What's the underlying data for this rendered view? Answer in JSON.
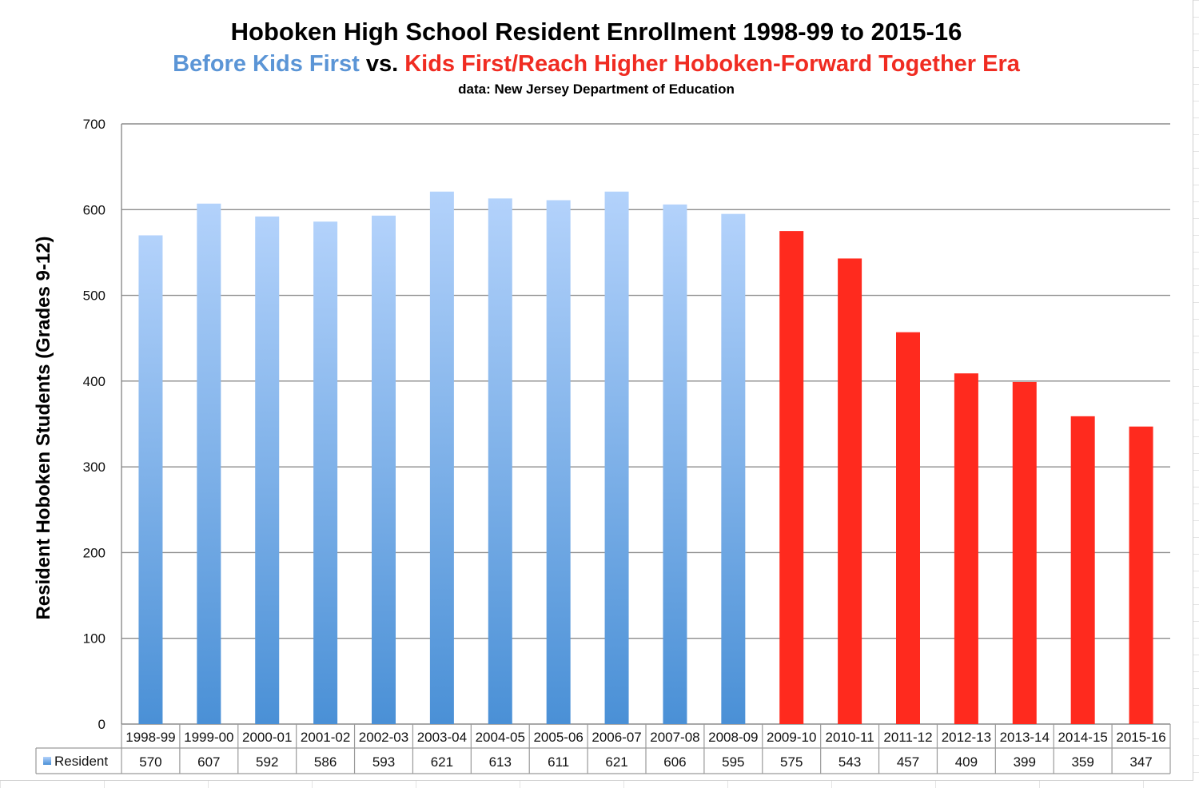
{
  "title": {
    "line1": "Hoboken High School Resident Enrollment 1998-99 to 2015-16",
    "line2_part1": "Before Kids First",
    "line2_part2": " vs. ",
    "line2_part3": "Kids First/Reach Higher Hoboken-Forward Together Era",
    "line3": "data: New Jersey Department of Education"
  },
  "colors": {
    "before_top": "#b3d2fb",
    "before_bottom": "#4a90d6",
    "after": "#ff2a1e",
    "gridline": "#8c8c8c",
    "title_blue": "#5b95d6",
    "title_red": "#f02c22"
  },
  "chart_data": {
    "type": "bar",
    "title": "Hoboken High School Resident Enrollment 1998-99 to 2015-16",
    "subtitle": "Before Kids First vs. Kids First/Reach Higher Hoboken-Forward Together Era",
    "source_note": "data: New Jersey Department of Education",
    "ylabel": "Resident Hoboken Students (Grades 9-12)",
    "xlabel": "",
    "ylim": [
      0,
      700
    ],
    "yticks": [
      0,
      100,
      200,
      300,
      400,
      500,
      600,
      700
    ],
    "grid": true,
    "legend_position": "data-table-left",
    "categories": [
      "1998-99",
      "1999-00",
      "2000-01",
      "2001-02",
      "2002-03",
      "2003-04",
      "2004-05",
      "2005-06",
      "2006-07",
      "2007-08",
      "2008-09",
      "2009-10",
      "2010-11",
      "2011-12",
      "2012-13",
      "2013-14",
      "2014-15",
      "2015-16"
    ],
    "series": [
      {
        "name": "Resident",
        "values": [
          570,
          607,
          592,
          586,
          593,
          621,
          613,
          611,
          621,
          606,
          595,
          575,
          543,
          457,
          409,
          399,
          359,
          347
        ],
        "era": [
          "before",
          "before",
          "before",
          "before",
          "before",
          "before",
          "before",
          "before",
          "before",
          "before",
          "before",
          "after",
          "after",
          "after",
          "after",
          "after",
          "after",
          "after"
        ]
      }
    ],
    "data_table": true
  }
}
